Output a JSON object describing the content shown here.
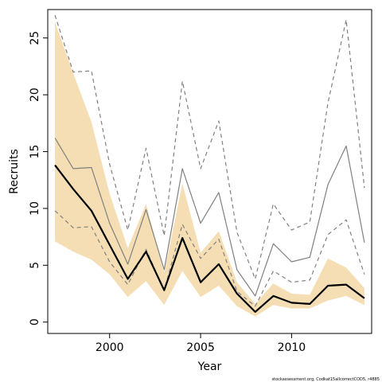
{
  "chart_data": {
    "type": "line",
    "xlabel": "Year",
    "ylabel": "Recruits",
    "xlim": [
      1996.6,
      2014.4
    ],
    "ylim": [
      -1.0,
      27.5
    ],
    "x_ticks": [
      2000,
      2005,
      2010
    ],
    "y_ticks": [
      0,
      5,
      10,
      15,
      20,
      25
    ],
    "grid": false,
    "legend": "none",
    "x": [
      1997,
      1998,
      1999,
      2000,
      2001,
      2002,
      2003,
      2004,
      2005,
      2006,
      2007,
      2008,
      2009,
      2010,
      2011,
      2012,
      2013,
      2014
    ],
    "series": [
      {
        "role": "band",
        "color": "#f5deb3",
        "lower": [
          7.1,
          6.2,
          5.5,
          4.2,
          2.2,
          3.6,
          1.5,
          4.5,
          2.2,
          3.2,
          1.4,
          0.5,
          1.5,
          1.2,
          1.2,
          1.9,
          2.3,
          1.5
        ],
        "upper": [
          26.4,
          21.9,
          17.6,
          11.3,
          6.5,
          10.4,
          4.3,
          12.2,
          6.1,
          8.0,
          3.5,
          1.6,
          3.4,
          2.5,
          2.4,
          5.6,
          4.8,
          3.0
        ]
      },
      {
        "role": "main",
        "color": "#000000",
        "values": [
          13.8,
          11.7,
          9.8,
          6.8,
          3.8,
          6.2,
          2.8,
          7.4,
          3.5,
          5.1,
          2.5,
          0.9,
          2.3,
          1.7,
          1.6,
          3.2,
          3.3,
          2.1
        ]
      },
      {
        "role": "secondary",
        "color": "#808080",
        "values": [
          16.2,
          13.5,
          13.6,
          8.7,
          5.1,
          9.9,
          4.6,
          13.5,
          8.7,
          11.4,
          4.6,
          2.3,
          6.9,
          5.3,
          5.7,
          12.1,
          15.5,
          7.0
        ]
      },
      {
        "role": "secondary-upper",
        "color": "#808080",
        "dashed": true,
        "values": [
          27.0,
          22.0,
          22.1,
          13.9,
          8.1,
          15.3,
          7.6,
          21.2,
          13.5,
          17.7,
          7.9,
          3.8,
          10.4,
          8.1,
          8.8,
          19.3,
          26.6,
          11.8
        ]
      },
      {
        "role": "secondary-lower",
        "color": "#808080",
        "dashed": true,
        "values": [
          9.8,
          8.3,
          8.4,
          5.3,
          3.3,
          6.4,
          2.8,
          8.6,
          5.6,
          7.3,
          2.7,
          1.4,
          4.5,
          3.5,
          3.7,
          7.7,
          9.0,
          4.2
        ]
      }
    ]
  },
  "footer_note": "stockassessment.org, Codkat15allcorrectCOD5, r4885"
}
